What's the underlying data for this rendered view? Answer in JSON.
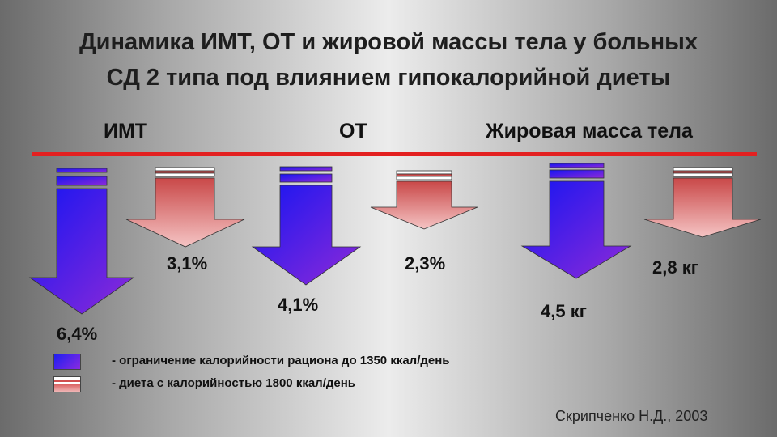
{
  "slide": {
    "title_line1": "Динамика ИМТ, ОТ и жировой массы тела у больных",
    "title_line2": "СД 2 типа под влиянием гипокалорийной диеты",
    "headers": {
      "imt": "ИМТ",
      "ot": "ОТ",
      "fat": "Жировая масса тела"
    },
    "values": [
      "6,4%",
      "3,1%",
      "4,1%",
      "2,3%",
      "4,5 кг",
      "2,8 кг"
    ],
    "legend": [
      {
        "text": "- ограничение калорийности рациона до 1350 ккал/день",
        "color": "#3b1fe6"
      },
      {
        "text": "- диета с калорийностью 1800 ккал/день",
        "color": "#d35a5a"
      }
    ],
    "source": "Скрипченко Н.Д., 2003",
    "colors": {
      "red_line": "#e32020",
      "blue_arrow": "#3b1fe6",
      "red_arrow": "#d35a5a"
    }
  }
}
